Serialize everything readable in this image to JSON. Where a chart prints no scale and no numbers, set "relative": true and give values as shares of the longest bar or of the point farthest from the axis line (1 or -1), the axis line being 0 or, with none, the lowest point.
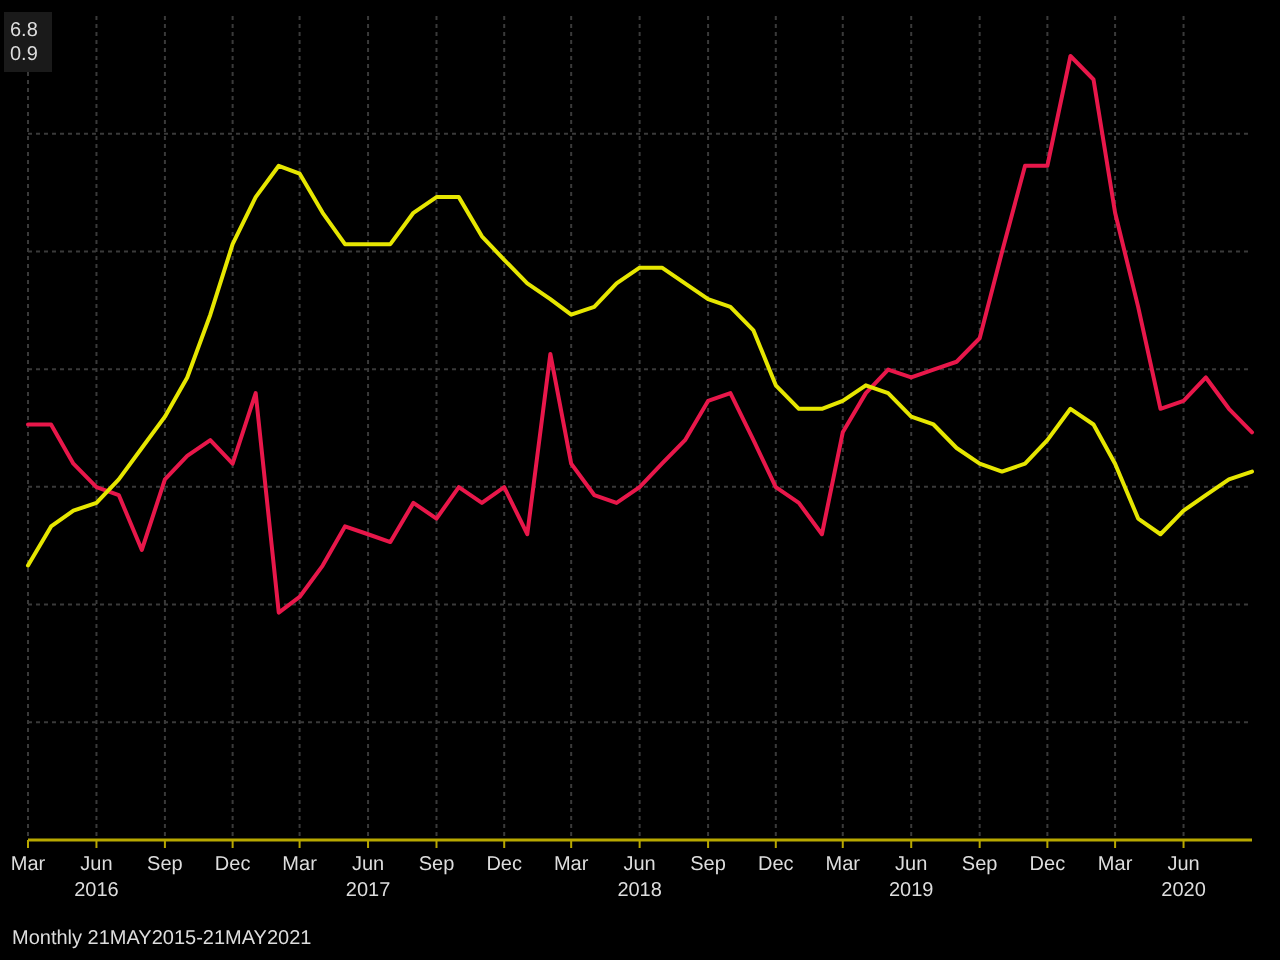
{
  "chart_data": {
    "type": "line",
    "relative": true,
    "grid": true,
    "annotations": [
      "6.8",
      "0.9",
      "Monthly 21MAY2015-21MAY2021"
    ],
    "x": [
      "2016-03",
      "2016-04",
      "2016-05",
      "2016-06",
      "2016-07",
      "2016-08",
      "2016-09",
      "2016-10",
      "2016-11",
      "2016-12",
      "2017-01",
      "2017-02",
      "2017-03",
      "2017-04",
      "2017-05",
      "2017-06",
      "2017-07",
      "2017-08",
      "2017-09",
      "2017-10",
      "2017-11",
      "2017-12",
      "2018-01",
      "2018-02",
      "2018-03",
      "2018-04",
      "2018-05",
      "2018-06",
      "2018-07",
      "2018-08",
      "2018-09",
      "2018-10",
      "2018-11",
      "2018-12",
      "2019-01",
      "2019-02",
      "2019-03",
      "2019-04",
      "2019-05",
      "2019-06",
      "2019-07",
      "2019-08",
      "2019-09",
      "2019-10",
      "2019-11",
      "2019-12",
      "2020-01",
      "2020-02",
      "2020-03",
      "2020-04",
      "2020-05",
      "2020-06",
      "2020-07",
      "2020-08",
      "2020-09"
    ],
    "xlim": [
      "2016-03",
      "2020-09"
    ],
    "xticks": [
      {
        "value": "2016-03",
        "label": "Mar"
      },
      {
        "value": "2016-06",
        "label": "Jun\n2016"
      },
      {
        "value": "2016-09",
        "label": "Sep"
      },
      {
        "value": "2016-12",
        "label": "Dec"
      },
      {
        "value": "2017-03",
        "label": "Mar"
      },
      {
        "value": "2017-06",
        "label": "Jun\n2017"
      },
      {
        "value": "2017-09",
        "label": "Sep"
      },
      {
        "value": "2017-12",
        "label": "Dec"
      },
      {
        "value": "2018-03",
        "label": "Mar"
      },
      {
        "value": "2018-06",
        "label": "Jun\n2018"
      },
      {
        "value": "2018-09",
        "label": "Sep"
      },
      {
        "value": "2018-12",
        "label": "Dec"
      },
      {
        "value": "2019-03",
        "label": "Mar"
      },
      {
        "value": "2019-06",
        "label": "Jun\n2019"
      },
      {
        "value": "2019-09",
        "label": "Sep"
      },
      {
        "value": "2019-12",
        "label": "Dec"
      },
      {
        "value": "2020-03",
        "label": "Mar"
      },
      {
        "value": "2020-06",
        "label": "Jun\n2020"
      }
    ],
    "series": [
      {
        "color": "#e8174a",
        "values": [
          0.53,
          0.53,
          0.48,
          0.45,
          0.44,
          0.37,
          0.46,
          0.49,
          0.51,
          0.48,
          0.57,
          0.29,
          0.31,
          0.35,
          0.4,
          0.39,
          0.38,
          0.43,
          0.41,
          0.45,
          0.43,
          0.45,
          0.39,
          0.62,
          0.48,
          0.44,
          0.43,
          0.45,
          0.48,
          0.51,
          0.56,
          0.57,
          0.51,
          0.45,
          0.43,
          0.39,
          0.52,
          0.57,
          0.6,
          0.59,
          0.6,
          0.61,
          0.64,
          0.75,
          0.86,
          0.86,
          1,
          0.97,
          0.8,
          0.68,
          0.55,
          0.56,
          0.59,
          0.55,
          0.52
        ]
      },
      {
        "color": "#e6e600",
        "values": [
          0.35,
          0.4,
          0.42,
          0.43,
          0.46,
          0.5,
          0.54,
          0.59,
          0.67,
          0.76,
          0.82,
          0.86,
          0.85,
          0.8,
          0.76,
          0.76,
          0.76,
          0.8,
          0.82,
          0.82,
          0.77,
          0.74,
          0.71,
          0.69,
          0.67,
          0.68,
          0.71,
          0.73,
          0.73,
          0.71,
          0.69,
          0.68,
          0.65,
          0.58,
          0.55,
          0.55,
          0.56,
          0.58,
          0.57,
          0.54,
          0.53,
          0.5,
          0.48,
          0.47,
          0.48,
          0.51,
          0.55,
          0.53,
          0.48,
          0.41,
          0.39,
          0.42,
          0.44,
          0.46,
          0.47
        ]
      }
    ]
  }
}
